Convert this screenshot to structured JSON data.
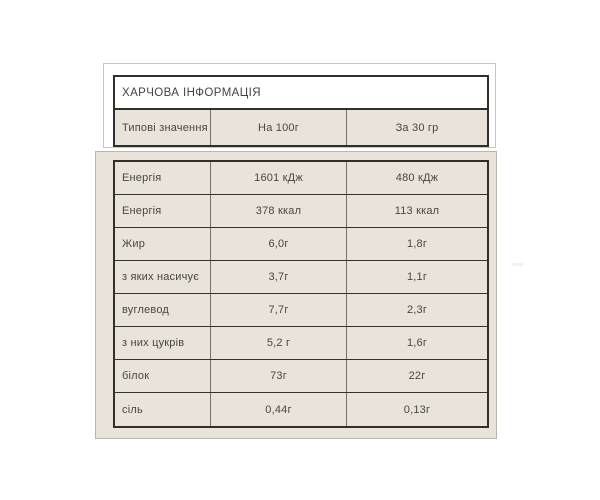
{
  "colors": {
    "page_background": "#ffffff",
    "beige_background": "#e9e3d9",
    "panel_border_light": "#c9c6c0",
    "table_border_dark": "#302f2c",
    "table_divider_vertical": "#75706e",
    "text_color": "#484743",
    "title_color": "#3f4347"
  },
  "header_panel": {
    "title": "ХАРЧОВА ІНФОРМАЦІЯ",
    "column_headers": [
      "Типові значення",
      "На 100г",
      "За 30 гр"
    ]
  },
  "nutrition_table": {
    "rows": [
      {
        "label": "Енергія",
        "per_100g": "1601 кДж",
        "per_30g": "480 кДж"
      },
      {
        "label": "Енергія",
        "per_100g": "378 ккал",
        "per_30g": "113 ккал"
      },
      {
        "label": "Жир",
        "per_100g": "6,0г",
        "per_30g": "1,8г"
      },
      {
        "label": "з яких насичує",
        "per_100g": "3,7г",
        "per_30g": "1,1г"
      },
      {
        "label": "вуглевод",
        "per_100g": "7,7г",
        "per_30g": "2,3г"
      },
      {
        "label": "з них цукрів",
        "per_100g": "5,2 г",
        "per_30g": "1,6г"
      },
      {
        "label": "білок",
        "per_100g": "73г",
        "per_30g": "22г"
      },
      {
        "label": "сіль",
        "per_100g": "0,44г",
        "per_30g": "0,13г"
      }
    ]
  }
}
